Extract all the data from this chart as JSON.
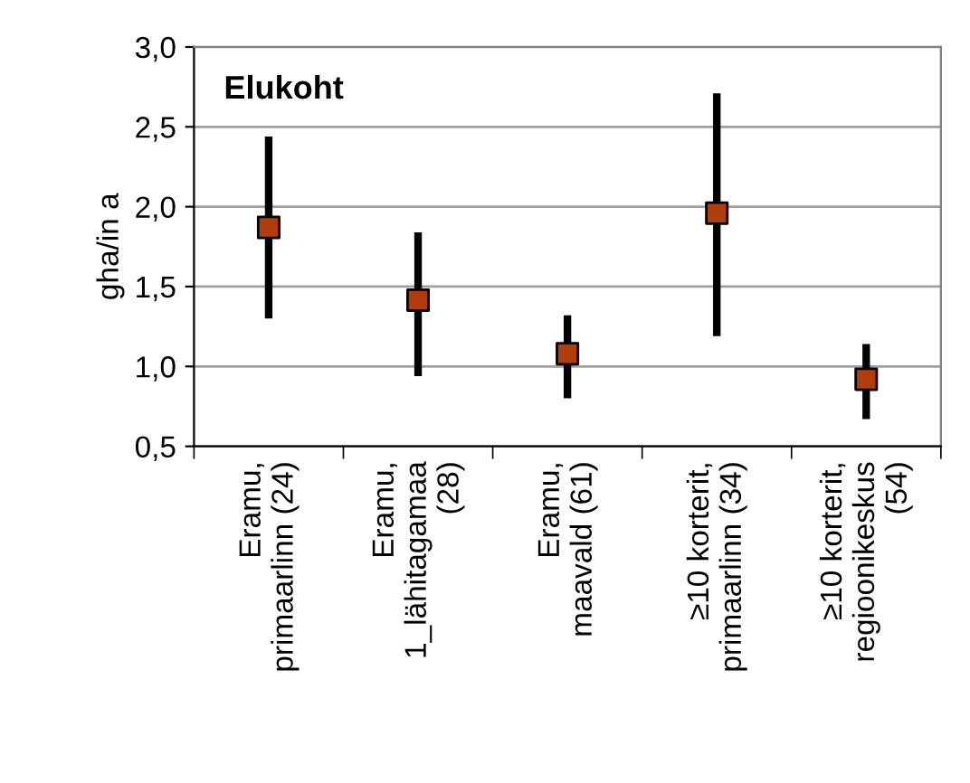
{
  "chart_data": {
    "type": "scatter",
    "title": "Elukoht",
    "ylabel": "gha/in a",
    "categories": [
      "Eramu,\nprimaarlinn (24)",
      "Eramu,\n1_lähitagamaa\n(28)",
      "Eramu,\nmaavald (61)",
      "≥10 korterit,\nprimaarlinn (34)",
      "≥10 korterit,\nregioonikeskus\n(54)"
    ],
    "series": [
      {
        "color": "#b33c0c",
        "values": [
          1.87,
          1.415,
          1.08,
          1.96,
          0.92
        ],
        "errors": [
          [
            1.3,
            2.44
          ],
          [
            0.94,
            1.84
          ],
          [
            0.8,
            1.32
          ],
          [
            1.19,
            2.71
          ],
          [
            0.67,
            1.14
          ]
        ]
      }
    ],
    "ylim": [
      0.5,
      3.0
    ],
    "yticks": [
      {
        "value": 0.5,
        "label": "0,5"
      },
      {
        "value": 1.0,
        "label": "1,0"
      },
      {
        "value": 1.5,
        "label": "1,5"
      },
      {
        "value": 2.0,
        "label": "2,0"
      },
      {
        "value": 2.5,
        "label": "2,5"
      },
      {
        "value": 3.0,
        "label": "3,0"
      }
    ],
    "grid": "y",
    "marker": "square",
    "legend": false
  }
}
